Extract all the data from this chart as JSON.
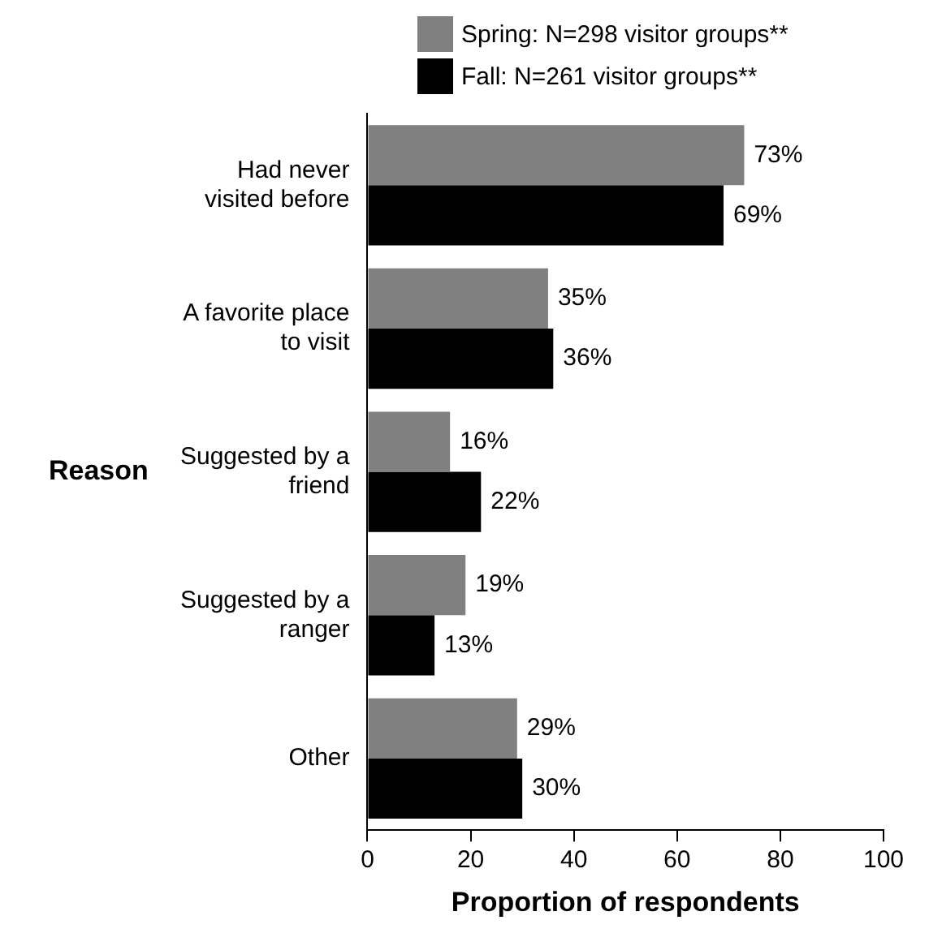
{
  "chart_data": {
    "type": "bar",
    "orientation": "horizontal",
    "xlabel": "Proportion of respondents",
    "ylabel": "Reason",
    "categories": [
      "Had never visited before",
      "A favorite place to visit",
      "Suggested by a friend",
      "Suggested by a ranger",
      "Other"
    ],
    "series": [
      {
        "name": "Spring: N=298 visitor groups**",
        "color": "#808080",
        "values": [
          73,
          35,
          16,
          19,
          29
        ],
        "value_labels": [
          "73%",
          "35%",
          "16%",
          "19%",
          "29%"
        ]
      },
      {
        "name": "Fall: N=261 visitor groups**",
        "color": "#000000",
        "values": [
          69,
          36,
          22,
          13,
          30
        ],
        "value_labels": [
          "69%",
          "36%",
          "22%",
          "13%",
          "30%"
        ]
      }
    ],
    "xlim": [
      0,
      100
    ],
    "xticks": [
      0,
      20,
      40,
      60,
      80,
      100
    ],
    "grid": false,
    "legend": "top"
  }
}
